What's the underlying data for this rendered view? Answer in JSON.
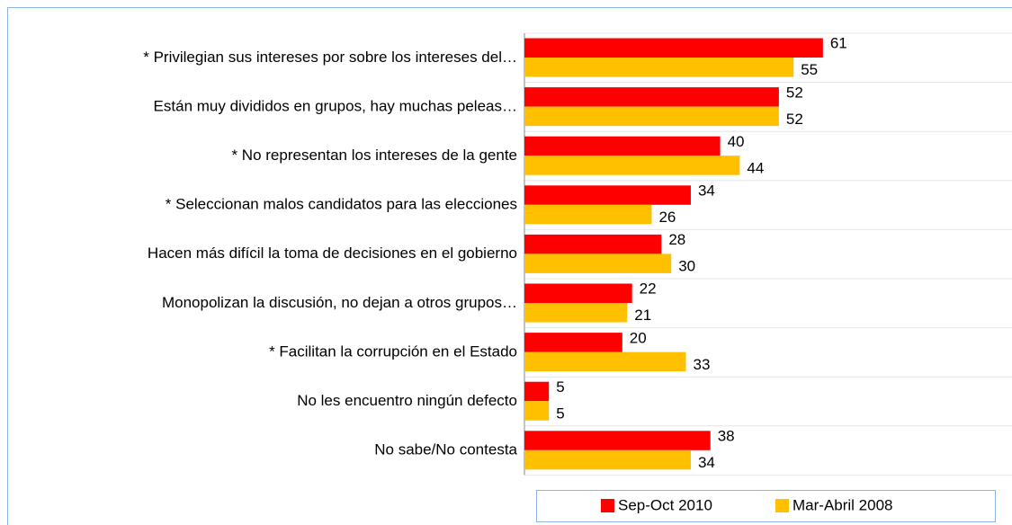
{
  "chart_data": {
    "type": "hbar",
    "categories": [
      "* Privilegian sus intereses por sobre los intereses del…",
      "Están muy divididos en grupos, hay muchas peleas…",
      "* No representan los intereses de la gente",
      "* Seleccionan malos candidatos para las elecciones",
      "Hacen más difícil la toma de decisiones en el gobierno",
      "Monopolizan la discusión, no dejan a otros grupos…",
      "* Facilitan la corrupción en el Estado",
      "No les encuentro ningún defecto",
      "No sabe/No contesta"
    ],
    "series": [
      {
        "name": "Sep-Oct 2010",
        "color": "#ff0000",
        "values": [
          61,
          52,
          40,
          34,
          28,
          22,
          20,
          5,
          38
        ]
      },
      {
        "name": "Mar-Abril 2008",
        "color": "#ffc000",
        "values": [
          55,
          52,
          44,
          26,
          30,
          21,
          33,
          5,
          34
        ]
      }
    ],
    "legend": "bottom"
  }
}
